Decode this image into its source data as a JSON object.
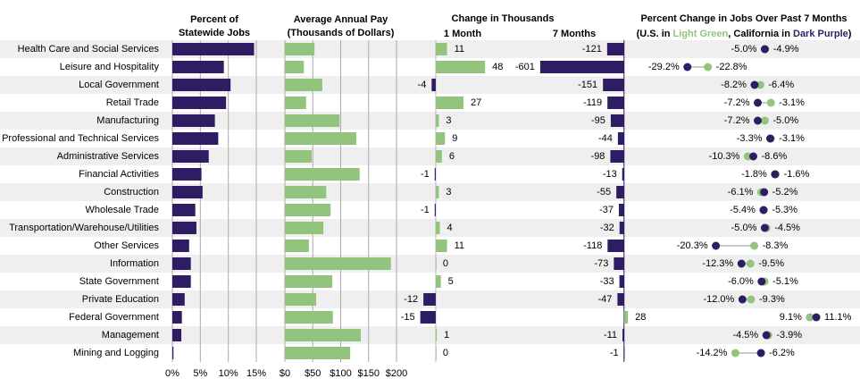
{
  "change_header": "Change in Thousands",
  "chart_data": [
    {
      "type": "bar",
      "orientation": "horizontal",
      "title_lines": [
        "Percent of",
        "Statewide Jobs"
      ],
      "categories": [
        "Health Care and Social Services",
        "Leisure and Hospitality",
        "Local Government",
        "Retail Trade",
        "Manufacturing",
        "Professional and Technical Services",
        "Administrative Services",
        "Financial Activities",
        "Construction",
        "Wholesale Trade",
        "Transportation/Warehouse/Utilities",
        "Other Services",
        "Information",
        "State Government",
        "Private Education",
        "Federal Government",
        "Management",
        "Mining and Logging"
      ],
      "values": [
        14.6,
        9.2,
        10.4,
        9.6,
        7.6,
        8.2,
        6.5,
        5.2,
        5.4,
        4.1,
        4.3,
        3.0,
        3.3,
        3.3,
        2.2,
        1.7,
        1.6,
        0.2
      ],
      "color": "#2f1d63",
      "xlim": [
        0,
        15
      ],
      "xticks": [
        {
          "value": 0,
          "label": "0%"
        },
        {
          "value": 5,
          "label": "5%"
        },
        {
          "value": 10,
          "label": "10%"
        },
        {
          "value": 15,
          "label": "15%"
        }
      ],
      "grid": true
    },
    {
      "type": "bar",
      "orientation": "horizontal",
      "title_lines": [
        "Average Annual Pay",
        "(Thousands of Dollars)"
      ],
      "values": [
        53,
        34,
        67,
        38,
        98,
        128,
        48,
        134,
        74,
        82,
        69,
        43,
        190,
        85,
        56,
        86,
        136,
        117
      ],
      "color": "#93c47d",
      "xlim": [
        0,
        200
      ],
      "xticks": [
        {
          "value": 0,
          "label": "$0"
        },
        {
          "value": 50,
          "label": "$50"
        },
        {
          "value": 100,
          "label": "$100"
        },
        {
          "value": 150,
          "label": "$150"
        },
        {
          "value": 200,
          "label": "$200"
        }
      ],
      "grid": true
    },
    {
      "type": "bar",
      "orientation": "horizontal",
      "title": "1 Month",
      "values": [
        11,
        48,
        -4,
        27,
        3,
        9,
        6,
        -1,
        3,
        -1,
        4,
        11,
        0,
        5,
        -12,
        -15,
        1,
        0
      ],
      "positive_color": "#93c47d",
      "negative_color": "#2f1d63",
      "xlim": [
        -26,
        60
      ]
    },
    {
      "type": "bar",
      "orientation": "horizontal",
      "title": "7 Months",
      "values": [
        -121,
        -601,
        -151,
        -119,
        -95,
        -44,
        -98,
        -13,
        -55,
        -37,
        -32,
        -118,
        -73,
        -33,
        -47,
        28,
        -11,
        -1
      ],
      "positive_color": "#93c47d",
      "negative_color": "#2f1d63",
      "xlim": [
        -610,
        40
      ]
    },
    {
      "type": "dumbbell",
      "title": "Percent Change in Jobs Over Past 7 Months",
      "subtitle_parts": [
        "(U.S. in ",
        "Light Green",
        ", California in ",
        "Dark Purple",
        ")"
      ],
      "xlim": [
        -35,
        15
      ],
      "series": [
        {
          "color": "#93c47d",
          "values": [
            -4.9,
            -22.8,
            -6.4,
            -3.1,
            -5.0,
            -3.1,
            -10.3,
            -1.6,
            -6.1,
            -5.3,
            -4.5,
            -8.3,
            -9.5,
            -5.1,
            -9.3,
            9.1,
            -3.9,
            -14.2
          ],
          "value_labels": [
            "-4.9%",
            "-22.8%",
            "-6.4%",
            "-3.1%",
            "-5.0%",
            "-3.1%",
            "-10.3%",
            "-1.6%",
            "-6.1%",
            "-5.3%",
            "-4.5%",
            "-8.3%",
            "-9.5%",
            "-5.1%",
            "-9.3%",
            "9.1%",
            "-3.9%",
            "-14.2%"
          ]
        },
        {
          "color": "#2f1d63",
          "values": [
            -5.0,
            -29.2,
            -8.2,
            -7.2,
            -7.2,
            -3.3,
            -8.6,
            -1.8,
            -5.2,
            -5.4,
            -5.0,
            -20.3,
            -12.3,
            -6.0,
            -12.0,
            11.1,
            -4.5,
            -6.2
          ],
          "value_labels": [
            "-5.0%",
            "-29.2%",
            "-8.2%",
            "-7.2%",
            "-7.2%",
            "-3.3%",
            "-8.6%",
            "-1.8%",
            "-5.2%",
            "-5.4%",
            "-5.0%",
            "-20.3%",
            "-12.3%",
            "-6.0%",
            "-12.0%",
            "11.1%",
            "-4.5%",
            "-6.2%"
          ]
        }
      ]
    }
  ]
}
